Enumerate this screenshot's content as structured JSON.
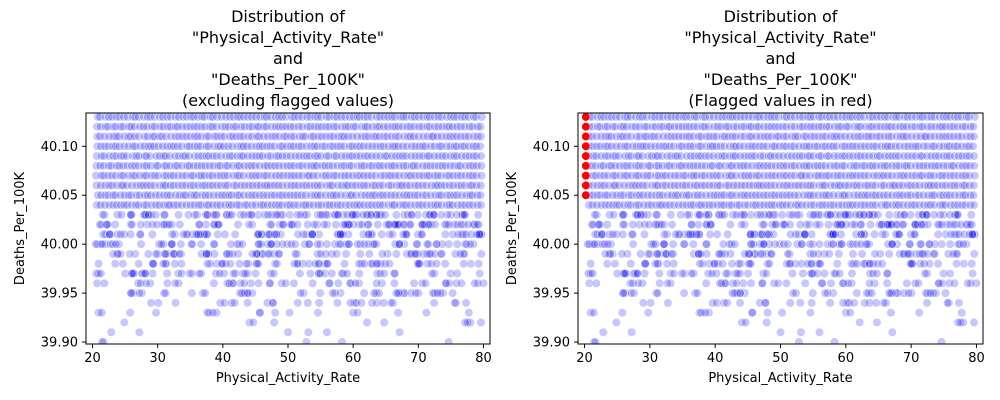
{
  "chart_data": [
    {
      "type": "scatter",
      "title_lines": [
        "Distribution of",
        "\"Physical_Activity_Rate\"",
        "and",
        "\"Deaths_Per_100K\"",
        "(excluding flagged values)"
      ],
      "xlabel": "Physical_Activity_Rate",
      "ylabel": "Deaths_Per_100K",
      "xlim": [
        19,
        81
      ],
      "ylim": [
        39.898,
        40.134
      ],
      "xticks": [
        20,
        30,
        40,
        50,
        60,
        70,
        80
      ],
      "yticks": [
        39.9,
        39.95,
        40.0,
        40.05,
        40.1
      ],
      "ytick_labels": [
        "39.90",
        "39.95",
        "40.00",
        "40.05",
        "40.10"
      ],
      "grid": false,
      "point_color": "#0000ff",
      "x_range": [
        20.5,
        80
      ],
      "y_levels": [
        39.9,
        39.91,
        39.92,
        39.93,
        39.94,
        39.95,
        39.96,
        39.97,
        39.98,
        39.99,
        40.0,
        40.01,
        40.02,
        40.03,
        40.04,
        40.05,
        40.06,
        40.07,
        40.08,
        40.09,
        40.1,
        40.11,
        40.12,
        40.13
      ],
      "points_per_level": [
        5,
        6,
        10,
        18,
        28,
        40,
        45,
        52,
        60,
        70,
        75,
        85,
        90,
        95,
        100,
        100,
        100,
        100,
        100,
        100,
        100,
        100,
        100,
        100
      ],
      "flagged_points": []
    },
    {
      "type": "scatter",
      "title_lines": [
        "Distribution of",
        "\"Physical_Activity_Rate\"",
        "and",
        "\"Deaths_Per_100K\"",
        "(Flagged values in red)"
      ],
      "xlabel": "Physical_Activity_Rate",
      "ylabel": "Deaths_Per_100K",
      "xlim": [
        19,
        81
      ],
      "ylim": [
        39.898,
        40.134
      ],
      "xticks": [
        20,
        30,
        40,
        50,
        60,
        70,
        80
      ],
      "yticks": [
        39.9,
        39.95,
        40.0,
        40.05,
        40.1
      ],
      "ytick_labels": [
        "39.90",
        "39.95",
        "40.00",
        "40.05",
        "40.10"
      ],
      "grid": false,
      "point_color": "#0000ff",
      "flag_color": "#ff0000",
      "x_range": [
        20.5,
        80
      ],
      "y_levels": [
        39.9,
        39.91,
        39.92,
        39.93,
        39.94,
        39.95,
        39.96,
        39.97,
        39.98,
        39.99,
        40.0,
        40.01,
        40.02,
        40.03,
        40.04,
        40.05,
        40.06,
        40.07,
        40.08,
        40.09,
        40.1,
        40.11,
        40.12,
        40.13
      ],
      "points_per_level": [
        5,
        6,
        10,
        18,
        28,
        40,
        45,
        52,
        60,
        70,
        75,
        85,
        90,
        95,
        100,
        100,
        100,
        100,
        100,
        100,
        100,
        100,
        100,
        100
      ],
      "flagged_points": [
        {
          "x": 20.2,
          "y": 40.05
        },
        {
          "x": 20.2,
          "y": 40.06
        },
        {
          "x": 20.2,
          "y": 40.07
        },
        {
          "x": 20.2,
          "y": 40.08
        },
        {
          "x": 20.2,
          "y": 40.09
        },
        {
          "x": 20.2,
          "y": 40.1
        },
        {
          "x": 20.2,
          "y": 40.11
        },
        {
          "x": 20.2,
          "y": 40.12
        },
        {
          "x": 20.2,
          "y": 40.13
        }
      ]
    }
  ]
}
